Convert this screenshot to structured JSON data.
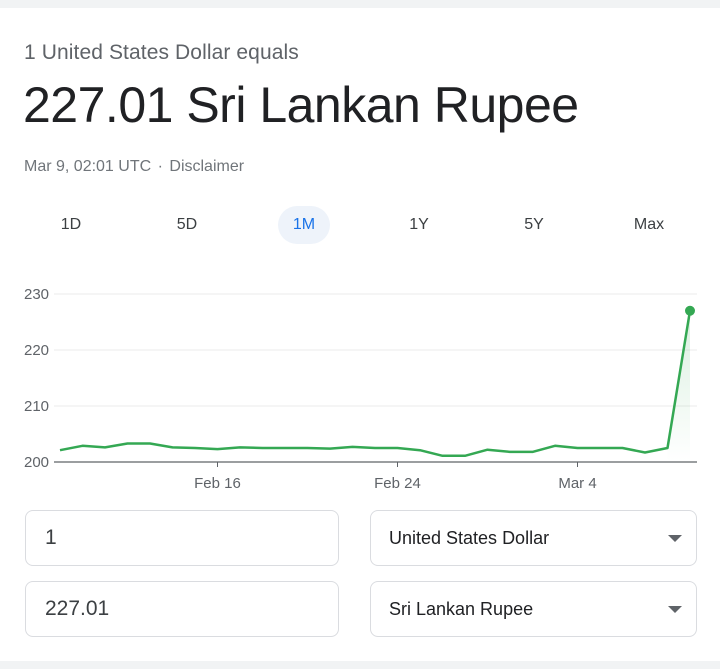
{
  "header": {
    "subtitle": "1 United States Dollar equals",
    "headline": "227.01 Sri Lankan Rupee",
    "timestamp": "Mar 9, 02:01 UTC",
    "separator": "·",
    "disclaimer": "Disclaimer"
  },
  "tabs": [
    {
      "label": "1D",
      "active": false
    },
    {
      "label": "5D",
      "active": false
    },
    {
      "label": "1M",
      "active": true
    },
    {
      "label": "1Y",
      "active": false
    },
    {
      "label": "5Y",
      "active": false
    },
    {
      "label": "Max",
      "active": false
    }
  ],
  "chart_data": {
    "type": "line",
    "title": "",
    "xlabel": "",
    "ylabel": "",
    "ylim": [
      200,
      230
    ],
    "yticks": [
      200,
      210,
      220,
      230
    ],
    "xticks": [
      "Feb 16",
      "Feb 24",
      "Mar 4"
    ],
    "xtick_index": [
      7,
      15,
      23
    ],
    "grid": true,
    "line_color": "#34a853",
    "series": [
      {
        "name": "",
        "values": [
          202.1,
          202.9,
          202.6,
          203.3,
          203.3,
          202.6,
          202.5,
          202.3,
          202.6,
          202.5,
          202.5,
          202.5,
          202.4,
          202.7,
          202.5,
          202.5,
          202.1,
          201.1,
          201.1,
          202.2,
          201.8,
          201.8,
          202.9,
          202.5,
          202.5,
          202.5,
          201.7,
          202.5,
          227.01
        ]
      }
    ]
  },
  "converter": {
    "from_amount": "1",
    "to_amount": "227.01",
    "from_currency": "United States Dollar",
    "to_currency": "Sri Lankan Rupee",
    "dropdown_icon": "caret-down-icon"
  },
  "colors": {
    "accent": "#1a73e8",
    "line": "#34a853",
    "tab_active_bg": "#eef3fa"
  }
}
